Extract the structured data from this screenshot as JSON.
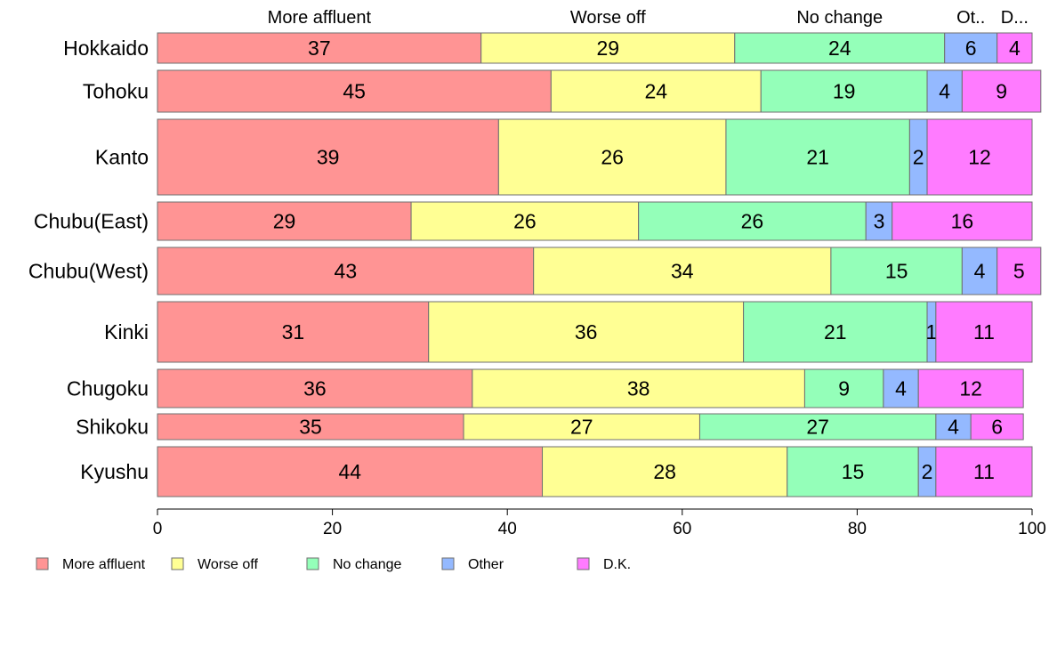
{
  "chart_data": {
    "type": "bar",
    "orientation": "horizontal",
    "stacked": true,
    "title": "",
    "xlabel": "",
    "ylabel": "",
    "xlim": [
      0,
      100
    ],
    "xticks": [
      0,
      20,
      40,
      60,
      80,
      100
    ],
    "categories": [
      "Hokkaido",
      "Tohoku",
      "Kanto",
      "Chubu(East)",
      "Chubu(West)",
      "Kinki",
      "Chugoku",
      "Shikoku",
      "Kyushu"
    ],
    "column_headers": [
      "More affluent",
      "Worse off",
      "No change",
      "Ot..",
      "D..."
    ],
    "series": [
      {
        "name": "More affluent",
        "color": "#ff9494",
        "values": [
          37,
          45,
          39,
          29,
          43,
          31,
          36,
          35,
          44
        ]
      },
      {
        "name": "Worse off",
        "color": "#ffff94",
        "values": [
          29,
          24,
          26,
          26,
          34,
          36,
          38,
          27,
          28
        ]
      },
      {
        "name": "No change",
        "color": "#94ffb9",
        "values": [
          24,
          19,
          21,
          26,
          15,
          21,
          9,
          27,
          15
        ]
      },
      {
        "name": "Other",
        "color": "#94b9ff",
        "values": [
          6,
          4,
          2,
          3,
          4,
          1,
          4,
          4,
          2
        ]
      },
      {
        "name": "D.K.",
        "color": "#ff7bff",
        "values": [
          4,
          9,
          12,
          16,
          5,
          11,
          12,
          6,
          11
        ]
      }
    ],
    "legend_position": "bottom"
  }
}
